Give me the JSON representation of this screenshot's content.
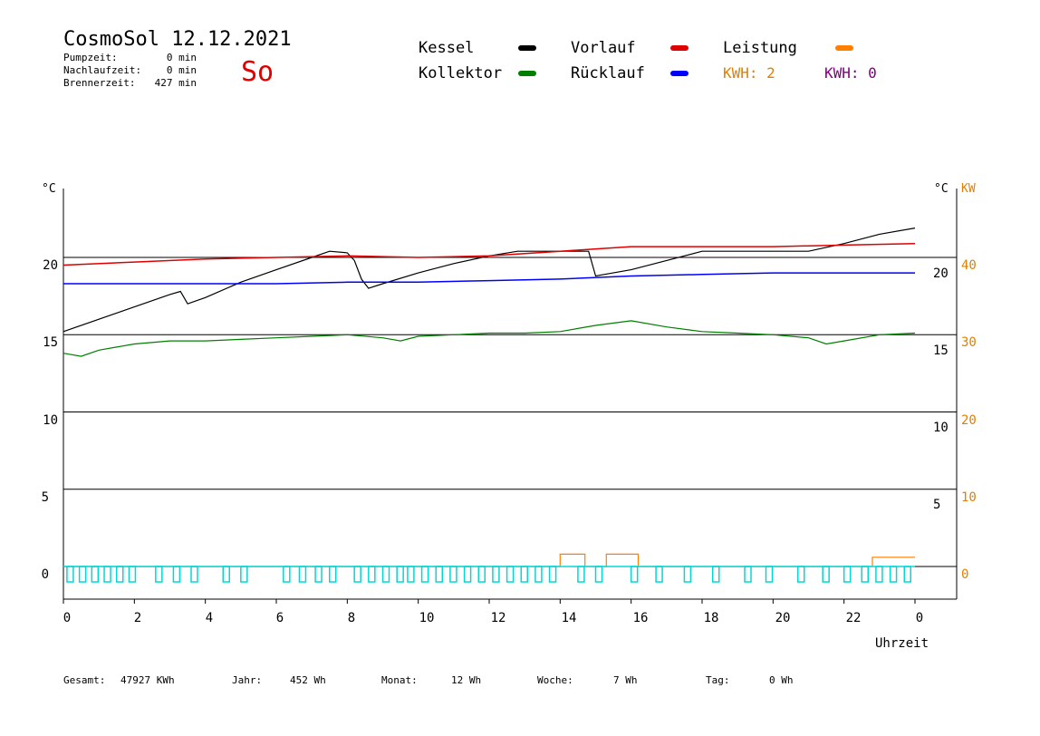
{
  "header": {
    "title": "CosmoSol 12.12.2021",
    "day": "So",
    "stats": [
      {
        "label": "Pumpzeit:",
        "value": "0 min"
      },
      {
        "label": "Nachlaufzeit:",
        "value": "0 min"
      },
      {
        "label": "Brennerzeit:",
        "value": "427 min"
      }
    ]
  },
  "legend": {
    "items": [
      {
        "label": "Kessel",
        "color": "#000000"
      },
      {
        "label": "Vorlauf",
        "color": "#e00000"
      },
      {
        "label": "Leistung",
        "color": "#ff7f00"
      },
      {
        "label": "Kollektor",
        "color": "#007f00"
      },
      {
        "label": "Rücklauf",
        "color": "#0000ff"
      }
    ],
    "kwh": [
      {
        "label": "KWH: 2",
        "color": "#e08000"
      },
      {
        "label": "KWH: 0",
        "color": "#800080"
      }
    ]
  },
  "axes": {
    "left_unit": "°C",
    "right_unit": "°C",
    "right_unit2": "KW",
    "left_ticks": [
      "20",
      "15",
      "10",
      "5",
      "0"
    ],
    "right_ticks": [
      "20",
      "15",
      "10",
      "5"
    ],
    "kw_ticks": [
      "40",
      "30",
      "20",
      "10",
      "0"
    ],
    "x_ticks": [
      "0",
      "2",
      "4",
      "6",
      "8",
      "10",
      "12",
      "14",
      "16",
      "18",
      "20",
      "22",
      "0"
    ],
    "x_label": "Uhrzeit"
  },
  "footer": [
    {
      "label": "Gesamt:",
      "value": "47927 KWh"
    },
    {
      "label": "Jahr:",
      "value": "452 Wh"
    },
    {
      "label": "Monat:",
      "value": "12 Wh"
    },
    {
      "label": "Woche:",
      "value": "7 Wh"
    },
    {
      "label": "Tag:",
      "value": "0 Wh"
    }
  ],
  "chart_data": {
    "type": "line",
    "x_unit": "hour",
    "xlim": [
      0,
      24
    ],
    "ylim": [
      0,
      25
    ],
    "y2lim": [
      0,
      50
    ],
    "series": [
      {
        "name": "Kessel",
        "color": "#000000",
        "x": [
          0,
          1,
          2,
          3,
          3.3,
          3.5,
          4,
          5,
          6,
          7,
          7.5,
          8,
          8.2,
          8.4,
          8.6,
          9,
          10,
          11,
          12,
          12.8,
          14.8,
          15.0,
          16,
          17,
          18,
          21,
          22,
          23,
          24
        ],
        "y": [
          15.2,
          16.0,
          16.8,
          17.6,
          17.8,
          17.0,
          17.4,
          18.4,
          19.2,
          20.0,
          20.4,
          20.3,
          19.8,
          18.6,
          18.0,
          18.3,
          19.0,
          19.6,
          20.1,
          20.4,
          20.4,
          18.8,
          19.2,
          19.8,
          20.4,
          20.4,
          20.9,
          21.5,
          21.9
        ]
      },
      {
        "name": "Vorlauf",
        "color": "#e00000",
        "x": [
          0,
          2,
          4,
          6,
          8,
          10,
          12,
          14,
          16,
          18,
          20,
          22,
          24
        ],
        "y": [
          19.5,
          19.7,
          19.9,
          20.0,
          20.1,
          20.0,
          20.1,
          20.4,
          20.7,
          20.7,
          20.7,
          20.8,
          20.9
        ]
      },
      {
        "name": "Rücklauf",
        "color": "#0000ff",
        "x": [
          0,
          2,
          4,
          6,
          8,
          10,
          12,
          14,
          16,
          18,
          20,
          22,
          24
        ],
        "y": [
          18.3,
          18.3,
          18.3,
          18.3,
          18.4,
          18.4,
          18.5,
          18.6,
          18.8,
          18.9,
          19.0,
          19.0,
          19.0
        ]
      },
      {
        "name": "Kollektor",
        "color": "#007f00",
        "x": [
          0,
          0.5,
          1,
          1.5,
          2,
          3,
          4,
          5,
          6,
          7,
          8,
          9,
          9.5,
          10,
          11,
          12,
          13,
          14,
          15,
          16,
          17,
          18,
          19,
          20,
          21,
          21.5,
          22,
          23,
          24
        ],
        "y": [
          13.8,
          13.6,
          14.0,
          14.2,
          14.4,
          14.6,
          14.6,
          14.7,
          14.8,
          14.9,
          15.0,
          14.8,
          14.6,
          14.9,
          15.0,
          15.1,
          15.1,
          15.2,
          15.6,
          15.9,
          15.5,
          15.2,
          15.1,
          15.0,
          14.8,
          14.4,
          14.6,
          15.0,
          15.1
        ]
      },
      {
        "name": "Leistung",
        "color": "#ff7f00",
        "x": [
          0,
          14,
          14,
          14.7,
          14.7,
          15.3,
          15.3,
          16.2,
          16.2,
          22.8,
          22.8,
          24
        ],
        "y": [
          0,
          0,
          0.4,
          0.4,
          0,
          0,
          0.4,
          0.4,
          0,
          0,
          0.3,
          0.3
        ]
      }
    ]
  }
}
